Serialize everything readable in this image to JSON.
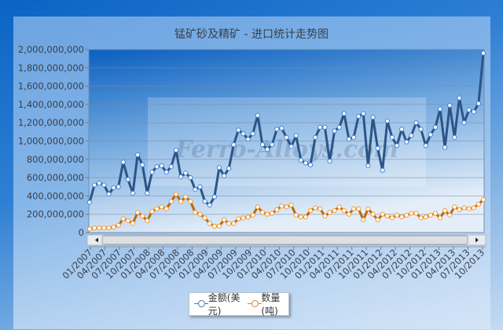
{
  "chart_data": {
    "type": "line",
    "title": "锰矿砂及精矿 - 进口统计走势图",
    "x_range": [
      "01/2007",
      "11/2013"
    ],
    "x_tick_labels": [
      "01/2007",
      "04/2007",
      "07/2007",
      "10/2007",
      "01/2008",
      "04/2008",
      "07/2008",
      "10/2008",
      "01/2009",
      "04/2009",
      "07/2009",
      "10/2009",
      "01/2010",
      "04/2010",
      "07/2010",
      "10/2010",
      "01/2011",
      "04/2011",
      "07/2011",
      "10/2011",
      "01/2012",
      "04/2012",
      "07/2012",
      "10/2012",
      "01/2013",
      "04/2013",
      "07/2013",
      "10/2013"
    ],
    "y_tick_labels": [
      "0",
      "200,000,000",
      "400,000,000",
      "600,000,000",
      "800,000,000",
      "1,000,000,000",
      "1,200,000,000",
      "1,400,000,000",
      "1,600,000,000",
      "1,800,000,000",
      "2,000,000,000"
    ],
    "ylim": [
      0,
      2000000000
    ],
    "grid": true,
    "legend_position": "bottom",
    "series": [
      {
        "name": "金额(美元)",
        "color": "#2b5587",
        "marker": "#ffffff",
        "values": [
          330000000.0,
          520000000.0,
          540000000.0,
          520000000.0,
          420000000.0,
          490000000.0,
          500000000.0,
          770000000.0,
          580000000.0,
          430000000.0,
          850000000.0,
          740000000.0,
          430000000.0,
          660000000.0,
          720000000.0,
          730000000.0,
          660000000.0,
          720000000.0,
          900000000.0,
          610000000.0,
          650000000.0,
          600000000.0,
          470000000.0,
          500000000.0,
          340000000.0,
          300000000.0,
          390000000.0,
          710000000.0,
          620000000.0,
          700000000.0,
          960000000.0,
          1120000000.0,
          1080000000.0,
          1020000000.0,
          1080000000.0,
          1280000000.0,
          960000000.0,
          910000000.0,
          960000000.0,
          1130000000.0,
          1140000000.0,
          1040000000.0,
          940000000.0,
          1060000000.0,
          790000000.0,
          760000000.0,
          740000000.0,
          1040000000.0,
          1150000000.0,
          1150000000.0,
          780000000.0,
          1110000000.0,
          1150000000.0,
          1300000000.0,
          1020000000.0,
          1040000000.0,
          1270000000.0,
          1300000000.0,
          730000000.0,
          1260000000.0,
          920000000.0,
          680000000.0,
          1220000000.0,
          1040000000.0,
          950000000.0,
          1130000000.0,
          990000000.0,
          1060000000.0,
          1200000000.0,
          1130000000.0,
          950000000.0,
          1070000000.0,
          1150000000.0,
          1350000000.0,
          930000000.0,
          1390000000.0,
          1040000000.0,
          1470000000.0,
          1200000000.0,
          1340000000.0,
          1320000000.0,
          1410000000.0,
          1960000000.0
        ]
      },
      {
        "name": "数量(吨)",
        "color": "#b86a12",
        "marker": "#ffffff",
        "values": [
          40000000.0,
          50000000.0,
          50000000.0,
          50000000.0,
          50000000.0,
          60000000.0,
          80000000.0,
          150000000.0,
          130000000.0,
          100000000.0,
          220000000.0,
          180000000.0,
          130000000.0,
          230000000.0,
          260000000.0,
          280000000.0,
          260000000.0,
          340000000.0,
          420000000.0,
          340000000.0,
          390000000.0,
          340000000.0,
          220000000.0,
          200000000.0,
          160000000.0,
          100000000.0,
          70000000.0,
          70000000.0,
          140000000.0,
          100000000.0,
          100000000.0,
          150000000.0,
          160000000.0,
          170000000.0,
          190000000.0,
          280000000.0,
          220000000.0,
          200000000.0,
          210000000.0,
          250000000.0,
          290000000.0,
          280000000.0,
          300000000.0,
          190000000.0,
          170000000.0,
          170000000.0,
          240000000.0,
          270000000.0,
          260000000.0,
          180000000.0,
          220000000.0,
          240000000.0,
          280000000.0,
          240000000.0,
          200000000.0,
          260000000.0,
          260000000.0,
          140000000.0,
          260000000.0,
          200000000.0,
          140000000.0,
          200000000.0,
          180000000.0,
          160000000.0,
          190000000.0,
          170000000.0,
          190000000.0,
          210000000.0,
          210000000.0,
          160000000.0,
          170000000.0,
          190000000.0,
          210000000.0,
          160000000.0,
          240000000.0,
          190000000.0,
          280000000.0,
          250000000.0,
          270000000.0,
          260000000.0,
          270000000.0,
          310000000.0,
          360000000.0
        ]
      }
    ],
    "watermark": "中国铁合金网 Ferro-Alloys.com"
  }
}
